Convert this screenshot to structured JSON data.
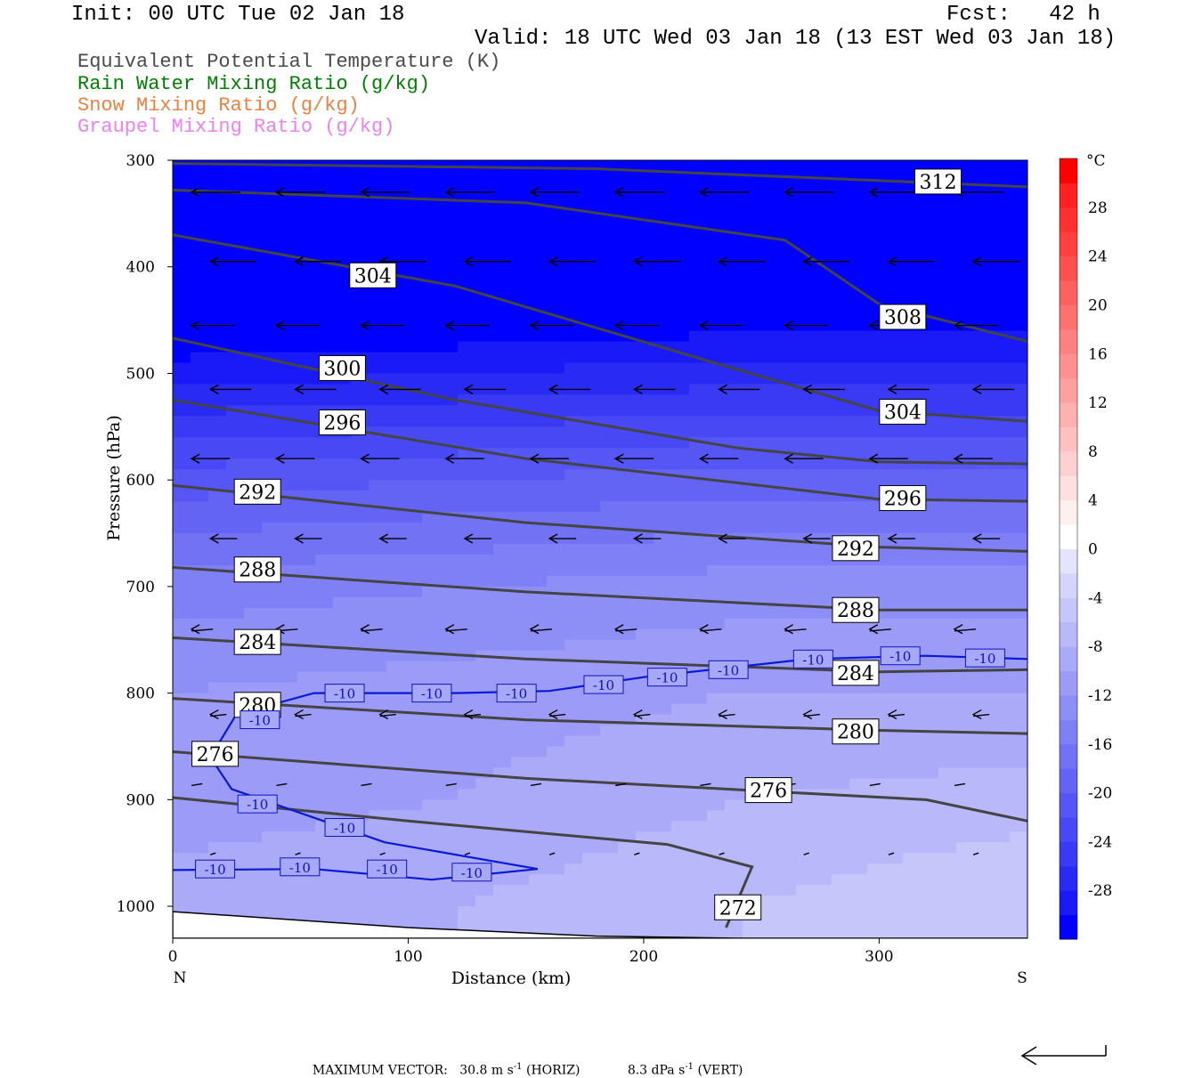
{
  "header": {
    "init": "Init: 00 UTC Tue 02 Jan 18",
    "fcst": "Fcst:   42 h",
    "valid": "Valid: 18 UTC Wed 03 Jan 18 (13 EST Wed 03 Jan 18)"
  },
  "legend": [
    {
      "label": "Equivalent Potential Temperature (K)",
      "color": "#4a4a4a"
    },
    {
      "label": "Rain Water Mixing Ratio (g/kg)",
      "color": "#008000"
    },
    {
      "label": "Snow Mixing Ratio (g/kg)",
      "color": "#f08040"
    },
    {
      "label": "Graupel Mixing Ratio (g/kg)",
      "color": "#f080f0"
    }
  ],
  "footer": {
    "prefix": "MAXIMUM VECTOR:",
    "horiz_value": "30.8 m s",
    "horiz_unit": "(HORIZ)",
    "vert_value": "8.3 dPa s",
    "vert_unit": "(VERT)",
    "exponent": "-1"
  },
  "chart_data": {
    "type": "heatmap",
    "xlabel": "Distance (km)",
    "ylabel": "Pressure (hPa)",
    "xlim": [
      0,
      363
    ],
    "ylim": [
      1030,
      300
    ],
    "x_ticks": [
      0,
      100,
      200,
      300
    ],
    "y_ticks": [
      300,
      400,
      500,
      600,
      700,
      800,
      900,
      1000
    ],
    "x_end_labels": {
      "left": "N",
      "right": "S"
    },
    "colorbar": {
      "unit": "°C",
      "tick_labels": [
        "28",
        "24",
        "20",
        "16",
        "12",
        "8",
        "4",
        "0",
        "-4",
        "-8",
        "-12",
        "-16",
        "-20",
        "-24",
        "-28"
      ],
      "tick_values": [
        28,
        24,
        20,
        16,
        12,
        8,
        4,
        0,
        -4,
        -8,
        -12,
        -16,
        -20,
        -24,
        -28
      ],
      "levels": [
        -32,
        -30,
        -28,
        -26,
        -24,
        -22,
        -20,
        -18,
        -16,
        -14,
        -12,
        -10,
        -8,
        -6,
        -4,
        -2,
        0,
        2,
        4,
        6,
        8,
        10,
        12,
        14,
        16,
        18,
        20,
        22,
        24,
        26,
        28,
        30,
        32
      ],
      "colors_cold_to_warm": [
        "#0000ff",
        "#1a1af8",
        "#2a2af5",
        "#3a3af4",
        "#4848f4",
        "#5656f4",
        "#6464f4",
        "#7272f5",
        "#8080f6",
        "#8e8ef7",
        "#9c9cf8",
        "#aaaaf9",
        "#b8b8fa",
        "#c6c6fb",
        "#d4d4fc",
        "#e4e4fd",
        "#ffffff",
        "#fff0f0",
        "#ffe0e0",
        "#ffd0d0",
        "#ffc0c0",
        "#ffb0b0",
        "#ffa0a0",
        "#ff9090",
        "#ff8080",
        "#ff7070",
        "#ff6060",
        "#ff5050",
        "#ff4040",
        "#ff3030",
        "#ff2020",
        "#ff0000"
      ]
    },
    "temperature_field_rows": [
      {
        "p": 300,
        "t": [
          -40,
          -40,
          -40,
          -40
        ]
      },
      {
        "p": 400,
        "t": [
          -36,
          -36,
          -35,
          -35
        ]
      },
      {
        "p": 500,
        "t": [
          -29,
          -28,
          -27,
          -27
        ]
      },
      {
        "p": 600,
        "t": [
          -21,
          -20,
          -19,
          -19
        ]
      },
      {
        "p": 700,
        "t": [
          -15,
          -14,
          -13,
          -13
        ]
      },
      {
        "p": 800,
        "t": [
          -12,
          -11,
          -10,
          -10
        ]
      },
      {
        "p": 900,
        "t": [
          -11,
          -10,
          -8,
          -7
        ]
      },
      {
        "p": 1000,
        "t": [
          -9,
          -8,
          -6,
          -4
        ]
      }
    ],
    "theta_e_contours": [
      {
        "label": "312",
        "points": [
          [
            0,
            303
          ],
          [
            180,
            308
          ],
          [
            363,
            325
          ]
        ],
        "label_at": [
          325,
          320
        ]
      },
      {
        "label": "308",
        "points": [
          [
            0,
            328
          ],
          [
            150,
            340
          ],
          [
            260,
            375
          ],
          [
            300,
            435
          ],
          [
            363,
            470
          ]
        ],
        "label_at": [
          310,
          447
        ]
      },
      {
        "label": "304",
        "points": [
          [
            0,
            370
          ],
          [
            120,
            418
          ],
          [
            230,
            490
          ],
          [
            300,
            535
          ],
          [
            363,
            545
          ]
        ],
        "label_at": [
          85,
          408
        ]
      },
      {
        "label": "304",
        "points": [],
        "label_at": [
          310,
          536
        ]
      },
      {
        "label": "300",
        "points": [
          [
            0,
            467
          ],
          [
            120,
            525
          ],
          [
            240,
            570
          ],
          [
            300,
            583
          ],
          [
            363,
            585
          ]
        ],
        "label_at": [
          72,
          495
        ]
      },
      {
        "label": "296",
        "points": [
          [
            0,
            525
          ],
          [
            150,
            580
          ],
          [
            300,
            618
          ],
          [
            363,
            620
          ]
        ],
        "label_at": [
          72,
          546
        ]
      },
      {
        "label": "296",
        "points": [],
        "label_at": [
          310,
          617
        ]
      },
      {
        "label": "292",
        "points": [
          [
            0,
            605
          ],
          [
            150,
            640
          ],
          [
            300,
            663
          ],
          [
            363,
            667
          ]
        ],
        "label_at": [
          36,
          611
        ]
      },
      {
        "label": "292",
        "points": [],
        "label_at": [
          290,
          664
        ]
      },
      {
        "label": "288",
        "points": [
          [
            0,
            682
          ],
          [
            150,
            705
          ],
          [
            300,
            722
          ],
          [
            363,
            722
          ]
        ],
        "label_at": [
          36,
          684
        ]
      },
      {
        "label": "288",
        "points": [],
        "label_at": [
          290,
          722
        ]
      },
      {
        "label": "284",
        "points": [
          [
            0,
            748
          ],
          [
            150,
            768
          ],
          [
            300,
            780
          ],
          [
            363,
            778
          ]
        ],
        "label_at": [
          36,
          752
        ]
      },
      {
        "label": "284",
        "points": [],
        "label_at": [
          290,
          781
        ]
      },
      {
        "label": "280",
        "points": [
          [
            0,
            805
          ],
          [
            150,
            825
          ],
          [
            300,
            835
          ],
          [
            363,
            838
          ]
        ],
        "label_at": [
          36,
          811
        ]
      },
      {
        "label": "280",
        "points": [],
        "label_at": [
          290,
          836
        ]
      },
      {
        "label": "276",
        "points": [
          [
            0,
            855
          ],
          [
            150,
            880
          ],
          [
            320,
            900
          ],
          [
            363,
            920
          ]
        ],
        "label_at": [
          18,
          857
        ]
      },
      {
        "label": "276",
        "points": [],
        "label_at": [
          253,
          891
        ]
      },
      {
        "label": "272",
        "points": [
          [
            0,
            898
          ],
          [
            100,
            920
          ],
          [
            210,
            942
          ],
          [
            246,
            963
          ],
          [
            235,
            1020
          ]
        ],
        "label_at": [
          240,
          1001
        ]
      }
    ],
    "isotherm_minus10": {
      "label": "-10",
      "points": [
        [
          155,
          965
        ],
        [
          90,
          940
        ],
        [
          25,
          890
        ],
        [
          16,
          860
        ],
        [
          27,
          820
        ],
        [
          60,
          800
        ],
        [
          120,
          800
        ],
        [
          160,
          798
        ],
        [
          200,
          785
        ],
        [
          270,
          768
        ],
        [
          320,
          765
        ],
        [
          363,
          768
        ]
      ],
      "lower_branch": [
        [
          0,
          966
        ],
        [
          60,
          965
        ],
        [
          110,
          975
        ],
        [
          155,
          965
        ]
      ],
      "label_positions": [
        [
          36,
          904
        ],
        [
          37,
          825
        ],
        [
          73,
          800
        ],
        [
          110,
          800
        ],
        [
          146,
          800
        ],
        [
          183,
          792
        ],
        [
          210,
          785
        ],
        [
          236,
          778
        ],
        [
          272,
          768
        ],
        [
          309,
          765
        ],
        [
          345,
          767
        ],
        [
          73,
          926
        ],
        [
          18,
          965
        ],
        [
          54,
          963
        ],
        [
          91,
          965
        ],
        [
          127,
          968
        ]
      ]
    },
    "wind_vectors_note": "arrows shown in plot",
    "max_vector": {
      "horiz": 30.8,
      "vert": 8.3
    }
  }
}
